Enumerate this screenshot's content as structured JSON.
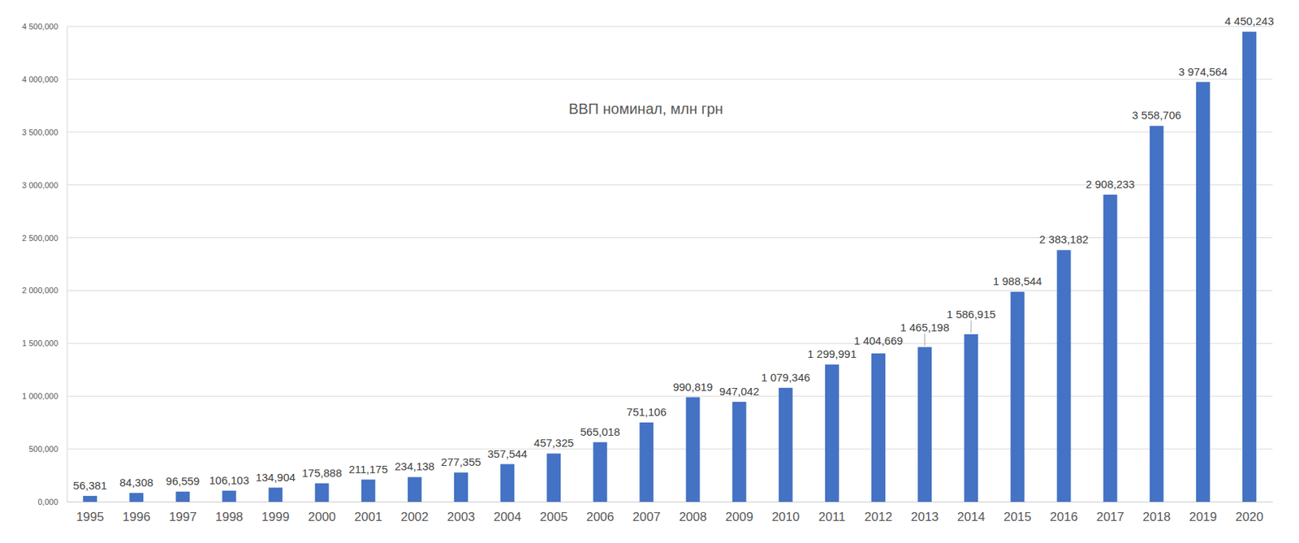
{
  "chart_data": {
    "type": "bar",
    "title": "ВВП номинал, млн грн",
    "categories": [
      "1995",
      "1996",
      "1997",
      "1998",
      "1999",
      "2000",
      "2001",
      "2002",
      "2003",
      "2004",
      "2005",
      "2006",
      "2007",
      "2008",
      "2009",
      "2010",
      "2011",
      "2012",
      "2013",
      "2014",
      "2015",
      "2016",
      "2017",
      "2018",
      "2019",
      "2020"
    ],
    "values": [
      56381,
      84308,
      96559,
      106103,
      134904,
      175888,
      211175,
      234138,
      277355,
      357544,
      457325,
      565018,
      751106,
      990819,
      947042,
      1079346,
      1299991,
      1404669,
      1465198,
      1586915,
      1988544,
      2383182,
      2908233,
      3558706,
      3974564,
      4450243
    ],
    "value_labels": [
      "56,381",
      "84,308",
      "96,559",
      "106,103",
      "134,904",
      "175,888",
      "211,175",
      "234,138",
      "277,355",
      "357,544",
      "457,325",
      "565,018",
      "751,106",
      "990,819",
      "947,042",
      "1 079,346",
      "1 299,991",
      "1 404,669",
      "1 465,198",
      "1 586,915",
      "1 988,544",
      "2 383,182",
      "2 908,233",
      "3 558,706",
      "3 974,564",
      "4 450,243"
    ],
    "color": "#4472c4",
    "ylim": [
      0,
      4500000
    ],
    "yticks": [
      {
        "value": 0,
        "label": "0,000"
      },
      {
        "value": 500000,
        "label": "500,000"
      },
      {
        "value": 1000000,
        "label": "1 000,000"
      },
      {
        "value": 1500000,
        "label": "1 500,000"
      },
      {
        "value": 2000000,
        "label": "2 000,000"
      },
      {
        "value": 2500000,
        "label": "2 500,000"
      },
      {
        "value": 3000000,
        "label": "3 000,000"
      },
      {
        "value": 3500000,
        "label": "3 500,000"
      },
      {
        "value": 4000000,
        "label": "4 000,000"
      },
      {
        "value": 4500000,
        "label": "4 500,000"
      }
    ],
    "grid": true,
    "data_labels": true
  }
}
